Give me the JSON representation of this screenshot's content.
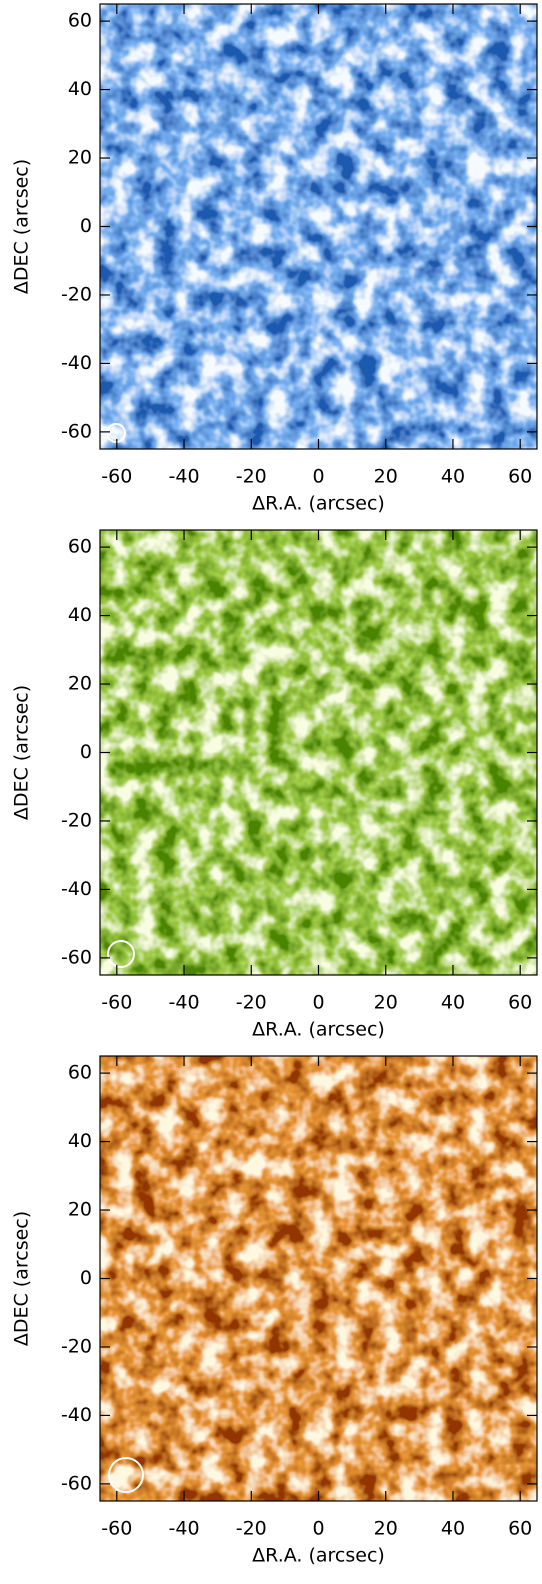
{
  "chart_data": [
    {
      "type": "image",
      "xlabel": "ΔR.A. (arcsec)",
      "ylabel": "ΔDEC (arcsec)",
      "xlim": [
        -65,
        65
      ],
      "ylim": [
        -65,
        65
      ],
      "xticks": [
        -60,
        -40,
        -20,
        0,
        20,
        40,
        60
      ],
      "yticks": [
        -60,
        -40,
        -20,
        0,
        20,
        40,
        60
      ],
      "colormap": [
        "#031a6e",
        "#2f6fe0",
        "#e8f4ff"
      ]
    },
    {
      "type": "image",
      "xlabel": "ΔR.A. (arcsec)",
      "ylabel": "ΔDEC (arcsec)",
      "xlim": [
        -65,
        65
      ],
      "ylim": [
        -65,
        65
      ],
      "xticks": [
        -60,
        -40,
        -20,
        0,
        20,
        40,
        60
      ],
      "yticks": [
        -60,
        -40,
        -20,
        0,
        20,
        40,
        60
      ],
      "colormap": [
        "#123d00",
        "#5a9a10",
        "#f0f8c0"
      ]
    },
    {
      "type": "image",
      "xlabel": "ΔR.A. (arcsec)",
      "ylabel": "ΔDEC (arcsec)",
      "xlim": [
        -65,
        65
      ],
      "ylim": [
        -65,
        65
      ],
      "xticks": [
        -60,
        -40,
        -20,
        0,
        20,
        40,
        60
      ],
      "yticks": [
        -60,
        -40,
        -20,
        0,
        20,
        40,
        60
      ],
      "colormap": [
        "#4a0a00",
        "#d0500a",
        "#fff0c0"
      ]
    }
  ]
}
